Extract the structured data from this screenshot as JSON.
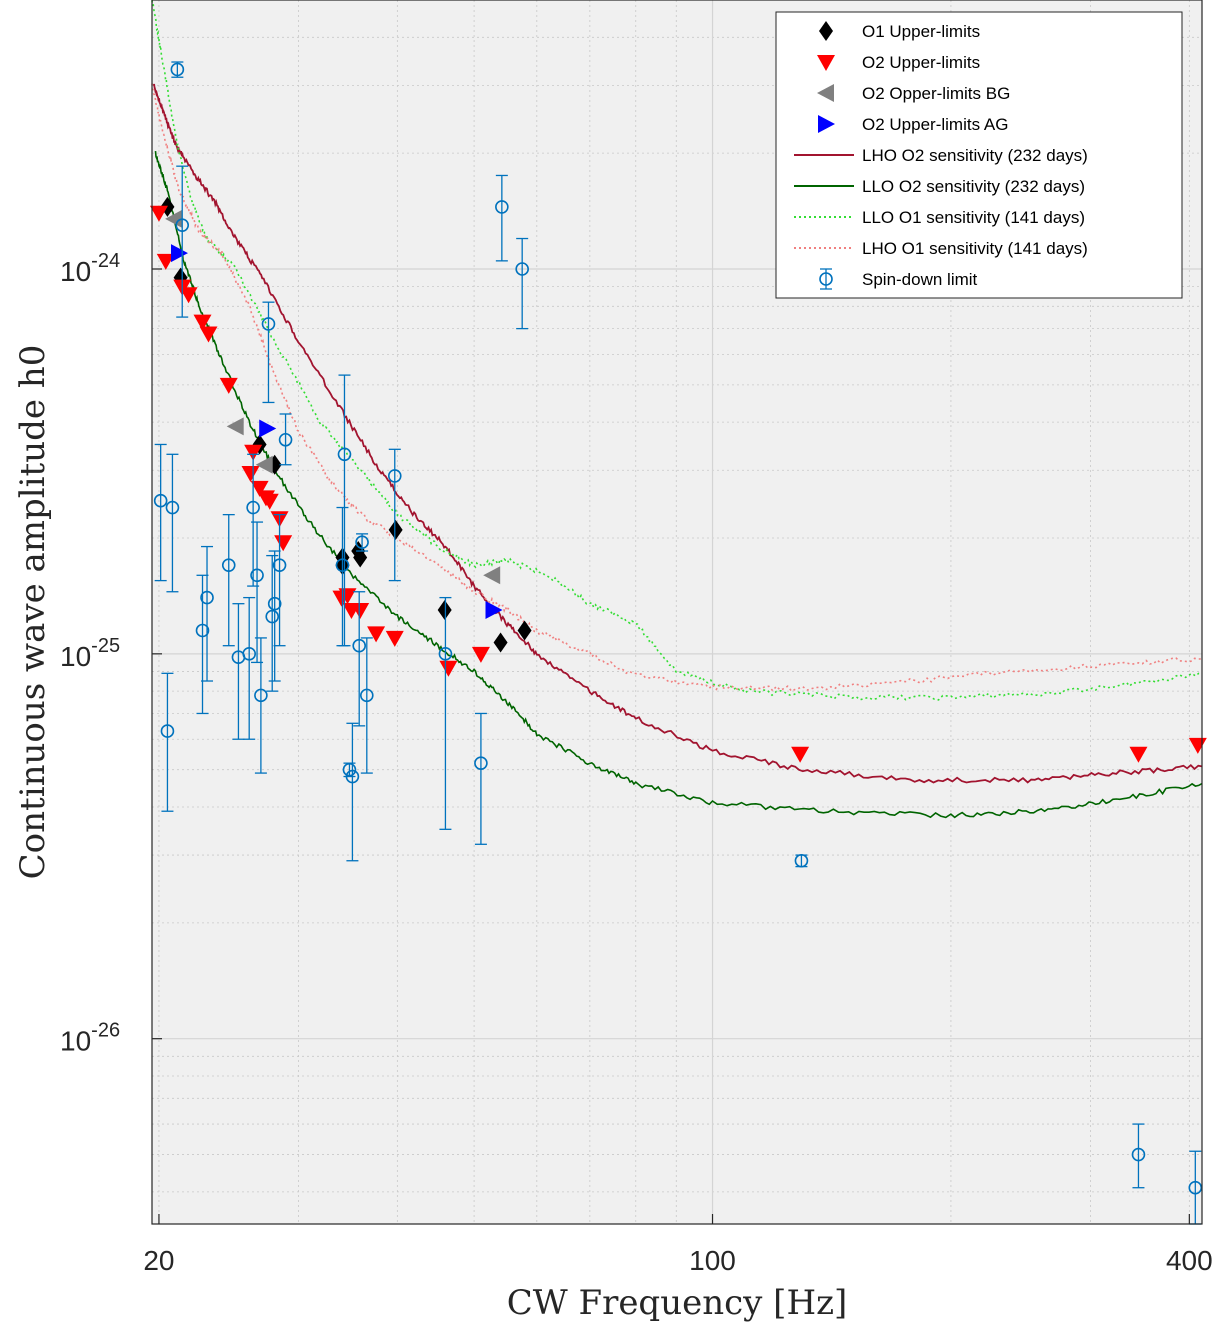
{
  "chart_data": {
    "type": "scatter",
    "xlabel": "CW Frequency [Hz]",
    "ylabel": "Continuous wave amplitude h0",
    "xscale": "log",
    "yscale": "log",
    "xlim": [
      19.6,
      415
    ],
    "ylim": [
      3.3e-27,
      5e-24
    ],
    "xticks": [
      {
        "value": 20,
        "label": "20"
      },
      {
        "value": 100,
        "label": "100"
      },
      {
        "value": 400,
        "label": "400"
      }
    ],
    "yticks": [
      {
        "value": 1e-24,
        "base": "10",
        "exp": "-24"
      },
      {
        "value": 1e-25,
        "base": "10",
        "exp": "-25"
      },
      {
        "value": 1e-26,
        "base": "10",
        "exp": "-26"
      }
    ],
    "grid": true,
    "legend_position": "top-right",
    "colors": {
      "o1": "#000000",
      "o2": "#ff0000",
      "bg": "#808080",
      "ag": "#0000ff",
      "lho_o2": "#a2142f",
      "llo_o2": "#006400",
      "llo_o1": "#33dd33",
      "lho_o1": "#f08080",
      "spindown": "#0072bd",
      "axes_bg": "#f0f0f0"
    },
    "series": [
      {
        "name": "O1 Upper-limits",
        "marker": "diamond",
        "points": [
          [
            20.5,
            1.45e-24
          ],
          [
            21.3,
            9.5e-25
          ],
          [
            26.8,
            3.5e-25
          ],
          [
            28.0,
            3.1e-25
          ],
          [
            34.1,
            1.7e-25
          ],
          [
            34.1,
            1.78e-25
          ],
          [
            35.7,
            1.85e-25
          ],
          [
            35.9,
            1.78e-25
          ],
          [
            39.8,
            2.1e-25
          ],
          [
            45.9,
            1.3e-25
          ],
          [
            54.0,
            1.07e-25
          ],
          [
            57.9,
            1.15e-25
          ]
        ]
      },
      {
        "name": "O2 Upper-limits",
        "marker": "triangle-down",
        "points": [
          [
            20.0,
            1.4e-24
          ],
          [
            20.4,
            1.05e-24
          ],
          [
            21.4,
            9e-25
          ],
          [
            21.8,
            8.6e-25
          ],
          [
            22.7,
            7.3e-25
          ],
          [
            23.1,
            6.8e-25
          ],
          [
            24.5,
            5e-25
          ],
          [
            26.1,
            2.95e-25
          ],
          [
            26.3,
            3.35e-25
          ],
          [
            26.8,
            2.7e-25
          ],
          [
            27.3,
            2.55e-25
          ],
          [
            27.6,
            2.5e-25
          ],
          [
            28.4,
            2.25e-25
          ],
          [
            28.7,
            1.95e-25
          ],
          [
            34.0,
            1.4e-25
          ],
          [
            34.6,
            1.42e-25
          ],
          [
            35.0,
            1.3e-25
          ],
          [
            35.9,
            1.3e-25
          ],
          [
            37.6,
            1.13e-25
          ],
          [
            39.7,
            1.1e-25
          ],
          [
            46.4,
            9.2e-26
          ],
          [
            51.0,
            1e-25
          ],
          [
            129.0,
            5.5e-26
          ],
          [
            345.0,
            5.5e-26
          ],
          [
            410.0,
            5.8e-26
          ]
        ]
      },
      {
        "name": "O2 Opper-limits BG",
        "marker": "triangle-left",
        "points": [
          [
            20.9,
            1.35e-24
          ],
          [
            25.0,
            3.9e-25
          ],
          [
            27.2,
            3.1e-25
          ],
          [
            52.7,
            1.6e-25
          ]
        ]
      },
      {
        "name": "O2 Upper-limits AG",
        "marker": "triangle-right",
        "points": [
          [
            21.2,
            1.1e-24
          ],
          [
            27.4,
            3.85e-25
          ],
          [
            52.9,
            1.3e-25
          ]
        ]
      },
      {
        "name": "LHO O2 sensitivity (232 days)",
        "style": "solid",
        "points": [
          [
            19.7,
            3e-24
          ],
          [
            20.2,
            2.6e-24
          ],
          [
            21.0,
            2.1e-24
          ],
          [
            22.0,
            1.8e-24
          ],
          [
            23.5,
            1.5e-24
          ],
          [
            25.0,
            1.2e-24
          ],
          [
            27.0,
            9.5e-25
          ],
          [
            30.0,
            6.5e-25
          ],
          [
            34.0,
            4.3e-25
          ],
          [
            38.0,
            3e-25
          ],
          [
            42.0,
            2.3e-25
          ],
          [
            46.0,
            1.9e-25
          ],
          [
            50.0,
            1.5e-25
          ],
          [
            55.0,
            1.2e-25
          ],
          [
            60.0,
            1e-25
          ],
          [
            70.0,
            8e-26
          ],
          [
            80.0,
            6.8e-26
          ],
          [
            100.0,
            5.6e-26
          ],
          [
            130.0,
            5e-26
          ],
          [
            180.0,
            4.7e-26
          ],
          [
            250.0,
            4.7e-26
          ],
          [
            320.0,
            4.9e-26
          ],
          [
            415.0,
            5.1e-26
          ]
        ]
      },
      {
        "name": "LLO O2 sensitivity (232 days)",
        "style": "solid",
        "points": [
          [
            19.8,
            2e-24
          ],
          [
            20.5,
            1.6e-24
          ],
          [
            21.5,
            1.05e-24
          ],
          [
            22.5,
            8e-25
          ],
          [
            24.0,
            5.8e-25
          ],
          [
            26.0,
            4e-25
          ],
          [
            28.0,
            3e-25
          ],
          [
            31.0,
            2.2e-25
          ],
          [
            35.0,
            1.6e-25
          ],
          [
            40.0,
            1.25e-25
          ],
          [
            45.0,
            1.05e-25
          ],
          [
            50.0,
            9e-26
          ],
          [
            55.0,
            7.5e-26
          ],
          [
            60.0,
            6.2e-26
          ],
          [
            70.0,
            5.2e-26
          ],
          [
            80.0,
            4.6e-26
          ],
          [
            100.0,
            4.1e-26
          ],
          [
            140.0,
            3.9e-26
          ],
          [
            200.0,
            3.8e-26
          ],
          [
            260.0,
            3.9e-26
          ],
          [
            330.0,
            4.2e-26
          ],
          [
            415.0,
            4.6e-26
          ]
        ]
      },
      {
        "name": "LLO O1 sensitivity (141 days)",
        "style": "dotted",
        "points": [
          [
            19.6,
            5e-24
          ],
          [
            20.2,
            3.5e-24
          ],
          [
            21.0,
            2.2e-24
          ],
          [
            22.0,
            1.5e-24
          ],
          [
            23.0,
            1.2e-24
          ],
          [
            25.0,
            1e-24
          ],
          [
            28.0,
            6.5e-25
          ],
          [
            32.0,
            4e-25
          ],
          [
            36.0,
            3e-25
          ],
          [
            40.0,
            2.3e-25
          ],
          [
            45.0,
            1.9e-25
          ],
          [
            50.0,
            1.7e-25
          ],
          [
            55.0,
            1.75e-25
          ],
          [
            62.0,
            1.6e-25
          ],
          [
            70.0,
            1.35e-25
          ],
          [
            80.0,
            1.2e-25
          ],
          [
            90.0,
            9e-26
          ],
          [
            110.0,
            8e-26
          ],
          [
            150.0,
            7.7e-26
          ],
          [
            200.0,
            7.7e-26
          ],
          [
            260.0,
            7.9e-26
          ],
          [
            330.0,
            8.3e-26
          ],
          [
            415.0,
            8.9e-26
          ]
        ]
      },
      {
        "name": "LHO O1 sensitivity (141 days)",
        "style": "dotted",
        "points": [
          [
            19.6,
            3e-24
          ],
          [
            20.3,
            2.2e-24
          ],
          [
            21.2,
            1.6e-24
          ],
          [
            22.5,
            1.25e-24
          ],
          [
            24.0,
            1.1e-24
          ],
          [
            26.0,
            8e-25
          ],
          [
            28.0,
            5.3e-25
          ],
          [
            30.0,
            3.8e-25
          ],
          [
            33.0,
            2.8e-25
          ],
          [
            36.0,
            2.3e-25
          ],
          [
            40.0,
            2e-25
          ],
          [
            45.0,
            1.7e-25
          ],
          [
            50.0,
            1.45e-25
          ],
          [
            55.0,
            1.3e-25
          ],
          [
            60.0,
            1.15e-25
          ],
          [
            70.0,
            1e-25
          ],
          [
            80.0,
            8.8e-26
          ],
          [
            100.0,
            8.2e-26
          ],
          [
            130.0,
            8.1e-26
          ],
          [
            180.0,
            8.5e-26
          ],
          [
            240.0,
            9e-26
          ],
          [
            320.0,
            9.4e-26
          ],
          [
            415.0,
            9.7e-26
          ]
        ]
      },
      {
        "name": "Spin-down limit",
        "marker": "circle-errorbar",
        "points": [
          [
            20.1,
            2.5e-25,
            1.55e-25,
            3.5e-25
          ],
          [
            20.5,
            6.3e-26,
            3.9e-26,
            8.9e-26
          ],
          [
            21.1,
            3.3e-24,
            3.15e-24,
            3.45e-24
          ],
          [
            21.4,
            1.3e-24,
            7.5e-25,
            1.85e-24
          ],
          [
            20.8,
            2.4e-25,
            1.45e-25,
            3.3e-25
          ],
          [
            22.7,
            1.15e-25,
            7e-26,
            1.6e-25
          ],
          [
            23.0,
            1.4e-25,
            8.5e-26,
            1.9e-25
          ],
          [
            24.5,
            1.7e-25,
            1.05e-25,
            2.3e-25
          ],
          [
            25.2,
            9.8e-26,
            6e-26,
            1.35e-25
          ],
          [
            26.0,
            1e-25,
            6e-26,
            1.4e-25
          ],
          [
            26.3,
            2.4e-25,
            1.5e-25,
            3.3e-25
          ],
          [
            26.6,
            1.6e-25,
            9.5e-26,
            2.2e-25
          ],
          [
            26.9,
            7.8e-26,
            4.9e-26,
            1.1e-25
          ],
          [
            27.5,
            7.2e-25,
            4.5e-25,
            8.2e-25
          ],
          [
            27.8,
            1.25e-25,
            8e-26,
            1.8e-25
          ],
          [
            28.0,
            1.35e-25,
            8.5e-26,
            1.85e-25
          ],
          [
            28.4,
            1.7e-25,
            1.05e-25,
            2.3e-25
          ],
          [
            28.9,
            3.6e-25,
            3.1e-25,
            4.2e-25
          ],
          [
            34.1,
            1.7e-25,
            1.05e-25,
            2.4e-25
          ],
          [
            34.3,
            3.3e-25,
            1.05e-25,
            5.3e-25
          ],
          [
            34.8,
            5e-26,
            4.8e-26,
            5.2e-26
          ],
          [
            35.1,
            4.8e-26,
            2.9e-26,
            6.6e-26
          ],
          [
            35.8,
            1.05e-25,
            6.5e-26,
            1.45e-25
          ],
          [
            36.1,
            1.95e-25,
            1.85e-25,
            2.05e-25
          ],
          [
            36.6,
            7.8e-26,
            4.9e-26,
            1.1e-25
          ],
          [
            39.7,
            2.9e-25,
            1.55e-25,
            3.4e-25
          ],
          [
            46.0,
            1e-25,
            3.5e-26,
            1.4e-25
          ],
          [
            51.0,
            5.2e-26,
            3.2e-26,
            7e-26
          ],
          [
            54.2,
            1.45e-24,
            1.05e-24,
            1.75e-24
          ],
          [
            57.5,
            1e-24,
            7e-25,
            1.2e-24
          ],
          [
            129.5,
            2.9e-26,
            2.8e-26,
            3e-26
          ],
          [
            345.0,
            5e-27,
            4.1e-27,
            6e-27
          ],
          [
            407.0,
            4.1e-27,
            3.3e-27,
            5.1e-27
          ]
        ]
      }
    ]
  }
}
